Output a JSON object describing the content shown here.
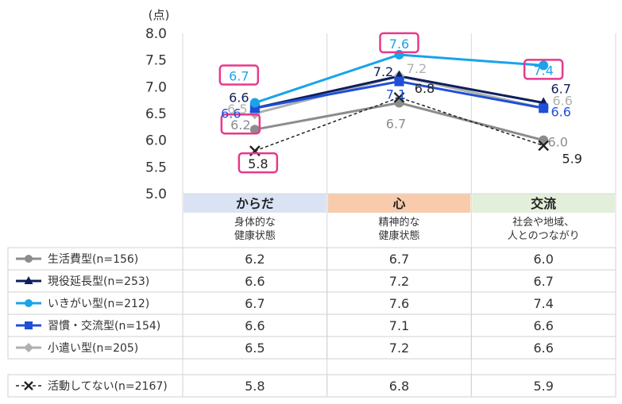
{
  "chart_data": {
    "type": "line",
    "unit": "(点)",
    "y_ticks": [
      "8.0",
      "7.5",
      "7.0",
      "6.5",
      "6.0",
      "5.5",
      "5.0"
    ],
    "ylim": [
      5.0,
      8.0
    ],
    "categories": [
      {
        "title": "からだ",
        "sub": [
          "身体的な",
          "健康状態"
        ],
        "bg": "#dae3f3"
      },
      {
        "title": "心",
        "sub": [
          "精神的な",
          "健康状態"
        ],
        "bg": "#f8cbad"
      },
      {
        "title": "交流",
        "sub": [
          "社会や地域、",
          "人とのつながり"
        ],
        "bg": "#e2efda"
      }
    ],
    "series": [
      {
        "name": "生活費型(n=156)",
        "values": [
          6.2,
          6.7,
          6.0
        ],
        "labels": [
          "6.2",
          "6.7",
          "6.0"
        ],
        "color": "#8c8c8c",
        "marker": "circle",
        "dash": false
      },
      {
        "name": "現役延長型(n=253)",
        "values": [
          6.6,
          7.2,
          6.7
        ],
        "labels": [
          "6.6",
          "7.2",
          "6.7"
        ],
        "color": "#0c1f5c",
        "marker": "triangle",
        "dash": false
      },
      {
        "name": "いきがい型(n=212)",
        "values": [
          6.7,
          7.6,
          7.4
        ],
        "labels": [
          "6.7",
          "7.6",
          "7.4"
        ],
        "color": "#1aa3e8",
        "marker": "circle",
        "dash": false
      },
      {
        "name": "習慣・交流型(n=154)",
        "values": [
          6.6,
          7.1,
          6.6
        ],
        "labels": [
          "6.6",
          "7.1",
          "6.6"
        ],
        "color": "#1f4fd8",
        "marker": "square",
        "dash": false
      },
      {
        "name": "小遣い型(n=205)",
        "values": [
          6.5,
          7.2,
          6.6
        ],
        "labels": [
          "6.5",
          "7.2",
          "6.6"
        ],
        "color": "#b0b0b0",
        "marker": "diamond",
        "dash": false
      },
      {
        "name": "活動してない(n=2167)",
        "values": [
          5.8,
          6.8,
          5.9
        ],
        "labels": [
          "5.8",
          "6.8",
          "5.9"
        ],
        "color": "#222222",
        "marker": "x",
        "dash": true
      }
    ],
    "highlight_color": "#e8398a"
  }
}
